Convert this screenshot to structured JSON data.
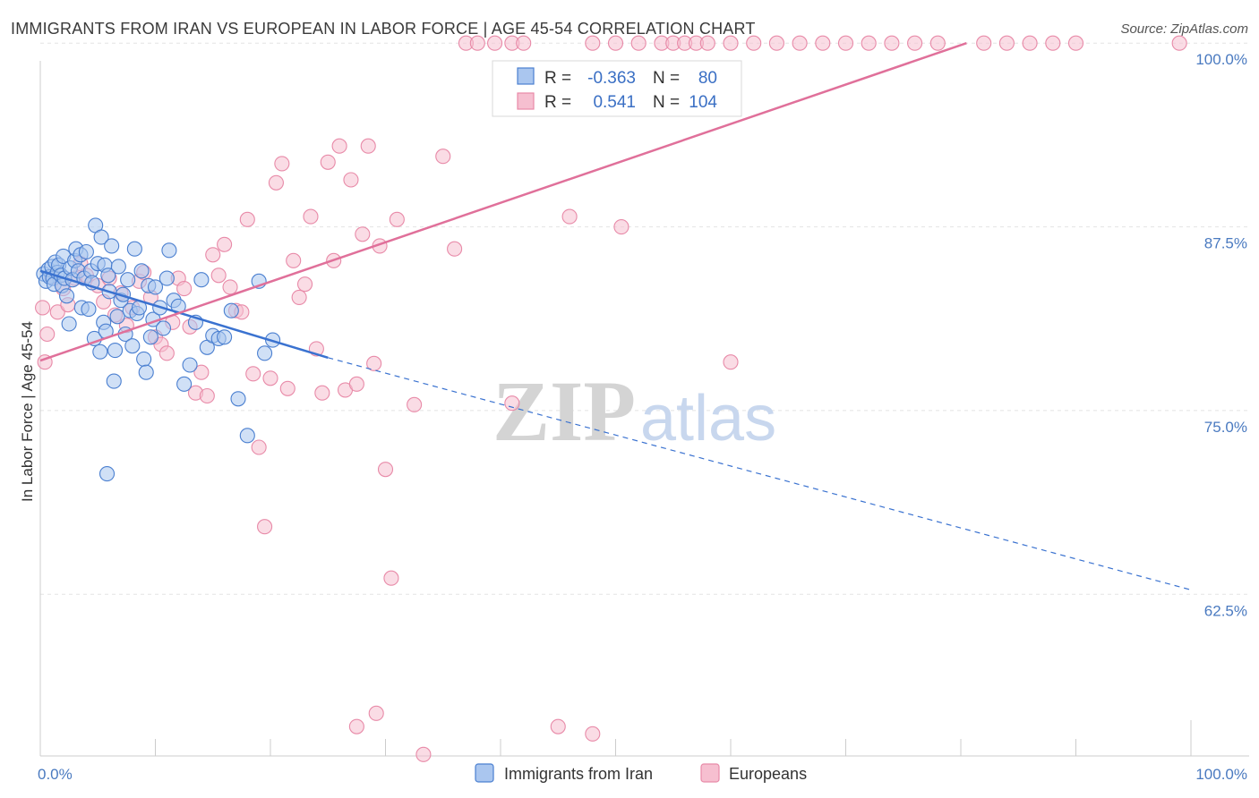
{
  "title": "IMMIGRANTS FROM IRAN VS EUROPEAN IN LABOR FORCE | AGE 45-54 CORRELATION CHART",
  "source": "Source: ZipAtlas.com",
  "watermark": {
    "zip": "ZIP",
    "atlas": "atlas"
  },
  "colors": {
    "iran_fill": "#aac6ef",
    "iran_stroke": "#4a7fd0",
    "iran_line": "#3a72d0",
    "euro_fill": "#f6bfd0",
    "euro_stroke": "#e88aa8",
    "euro_line": "#e0709a",
    "grid": "#e4e4e4",
    "axis": "#cccccc"
  },
  "stats": {
    "iran": {
      "r_label": "R =",
      "r_value": "-0.363",
      "n_label": "N =",
      "n_value": "80"
    },
    "euro": {
      "r_label": "R =",
      "r_value": "0.541",
      "n_label": "N =",
      "n_value": "104"
    }
  },
  "chart_data": {
    "type": "scatter",
    "title": "IMMIGRANTS FROM IRAN VS EUROPEAN IN LABOR FORCE | AGE 45-54 CORRELATION CHART",
    "xlabel": "",
    "ylabel": "In Labor Force | Age 45-54",
    "xlim": [
      0,
      100
    ],
    "ylim": [
      51.5,
      100.5
    ],
    "x_tick_labels": [
      {
        "value": 0,
        "label": "0.0%"
      },
      {
        "value": 100,
        "label": "100.0%"
      }
    ],
    "y_tick_labels": [
      {
        "value": 100,
        "label": "100.0%"
      },
      {
        "value": 87.5,
        "label": "87.5%"
      },
      {
        "value": 75,
        "label": "75.0%"
      },
      {
        "value": 62.5,
        "label": "62.5%"
      }
    ],
    "x_minor_ticks": [
      10,
      20,
      30,
      40,
      50,
      60,
      70,
      80,
      90
    ],
    "legend": [
      "Immigrants from Iran",
      "Europeans"
    ],
    "series": [
      {
        "name": "Immigrants from Iran",
        "points": [
          [
            0.3,
            84.3
          ],
          [
            0.5,
            83.8
          ],
          [
            0.7,
            84.6
          ],
          [
            0.8,
            84.1
          ],
          [
            1.0,
            84.8
          ],
          [
            1.1,
            84.0
          ],
          [
            1.2,
            83.6
          ],
          [
            1.3,
            85.1
          ],
          [
            1.5,
            84.4
          ],
          [
            1.6,
            84.9
          ],
          [
            1.8,
            84.2
          ],
          [
            1.9,
            83.5
          ],
          [
            2.0,
            85.5
          ],
          [
            2.1,
            84.0
          ],
          [
            2.3,
            82.8
          ],
          [
            2.5,
            80.9
          ],
          [
            2.6,
            84.7
          ],
          [
            2.8,
            83.9
          ],
          [
            3.0,
            85.2
          ],
          [
            3.1,
            86.0
          ],
          [
            3.3,
            84.5
          ],
          [
            3.5,
            85.6
          ],
          [
            3.6,
            82.0
          ],
          [
            3.8,
            84.0
          ],
          [
            4.0,
            85.8
          ],
          [
            4.2,
            81.9
          ],
          [
            4.4,
            84.5
          ],
          [
            4.5,
            83.7
          ],
          [
            4.7,
            79.9
          ],
          [
            4.8,
            87.6
          ],
          [
            5.0,
            85.0
          ],
          [
            5.2,
            79.0
          ],
          [
            5.3,
            86.8
          ],
          [
            5.5,
            81.0
          ],
          [
            5.6,
            84.9
          ],
          [
            5.7,
            80.4
          ],
          [
            5.9,
            84.2
          ],
          [
            6.0,
            83.1
          ],
          [
            6.2,
            86.2
          ],
          [
            6.4,
            77.0
          ],
          [
            6.5,
            79.1
          ],
          [
            6.7,
            81.4
          ],
          [
            6.8,
            84.8
          ],
          [
            7.0,
            82.5
          ],
          [
            7.2,
            82.9
          ],
          [
            7.4,
            80.2
          ],
          [
            7.6,
            83.9
          ],
          [
            7.8,
            81.8
          ],
          [
            8.0,
            79.4
          ],
          [
            8.2,
            86.0
          ],
          [
            8.4,
            81.6
          ],
          [
            8.6,
            82.0
          ],
          [
            8.8,
            84.5
          ],
          [
            9.0,
            78.5
          ],
          [
            9.2,
            77.6
          ],
          [
            9.4,
            83.5
          ],
          [
            9.6,
            80.0
          ],
          [
            9.8,
            81.2
          ],
          [
            10.0,
            83.4
          ],
          [
            10.4,
            82.0
          ],
          [
            10.7,
            80.6
          ],
          [
            11.0,
            84.0
          ],
          [
            11.2,
            85.9
          ],
          [
            11.6,
            82.5
          ],
          [
            12.0,
            82.1
          ],
          [
            12.5,
            76.8
          ],
          [
            13.0,
            78.1
          ],
          [
            13.5,
            81.0
          ],
          [
            14.0,
            83.9
          ],
          [
            14.5,
            79.3
          ],
          [
            15.0,
            80.1
          ],
          [
            15.5,
            79.9
          ],
          [
            16.0,
            80.0
          ],
          [
            16.6,
            81.8
          ],
          [
            5.8,
            70.7
          ],
          [
            17.2,
            75.8
          ],
          [
            18.0,
            73.3
          ],
          [
            19.0,
            83.8
          ],
          [
            19.5,
            78.9
          ],
          [
            20.2,
            79.8
          ]
        ]
      },
      {
        "name": "Europeans",
        "points": [
          [
            0.2,
            82.0
          ],
          [
            0.4,
            78.3
          ],
          [
            0.6,
            80.2
          ],
          [
            1.0,
            84.1
          ],
          [
            1.5,
            81.7
          ],
          [
            2.0,
            83.3
          ],
          [
            2.4,
            82.2
          ],
          [
            3.0,
            84.0
          ],
          [
            3.5,
            85.0
          ],
          [
            4.0,
            84.2
          ],
          [
            5.0,
            83.5
          ],
          [
            5.5,
            82.4
          ],
          [
            6.0,
            84.0
          ],
          [
            6.5,
            81.5
          ],
          [
            7.0,
            83.0
          ],
          [
            7.5,
            80.8
          ],
          [
            8.0,
            82.0
          ],
          [
            8.6,
            83.8
          ],
          [
            9.0,
            84.4
          ],
          [
            9.6,
            82.7
          ],
          [
            10.0,
            80.0
          ],
          [
            10.5,
            79.5
          ],
          [
            11.0,
            78.9
          ],
          [
            11.5,
            81.0
          ],
          [
            12.0,
            84.0
          ],
          [
            12.5,
            83.3
          ],
          [
            13.0,
            80.7
          ],
          [
            13.5,
            76.2
          ],
          [
            14.0,
            77.6
          ],
          [
            14.5,
            76.0
          ],
          [
            15.0,
            85.6
          ],
          [
            15.5,
            84.2
          ],
          [
            16.0,
            86.3
          ],
          [
            16.5,
            83.4
          ],
          [
            17.0,
            81.8
          ],
          [
            17.5,
            81.7
          ],
          [
            18.0,
            88.0
          ],
          [
            18.5,
            77.5
          ],
          [
            19.0,
            72.5
          ],
          [
            19.5,
            67.1
          ],
          [
            20.0,
            77.2
          ],
          [
            20.5,
            90.5
          ],
          [
            21.0,
            91.8
          ],
          [
            21.5,
            76.5
          ],
          [
            22.0,
            85.2
          ],
          [
            22.5,
            82.7
          ],
          [
            23.0,
            83.6
          ],
          [
            23.5,
            88.2
          ],
          [
            24.0,
            79.2
          ],
          [
            24.5,
            76.2
          ],
          [
            25.0,
            91.9
          ],
          [
            25.5,
            85.2
          ],
          [
            26.0,
            93.0
          ],
          [
            26.5,
            76.4
          ],
          [
            27.0,
            90.7
          ],
          [
            27.5,
            76.8
          ],
          [
            28.0,
            87.0
          ],
          [
            28.5,
            93.0
          ],
          [
            29.0,
            78.2
          ],
          [
            29.5,
            86.2
          ],
          [
            30.0,
            71.0
          ],
          [
            30.5,
            63.6
          ],
          [
            31.0,
            88.0
          ],
          [
            32.5,
            75.4
          ],
          [
            33.3,
            51.6
          ],
          [
            35.0,
            92.3
          ],
          [
            36.0,
            86.0
          ],
          [
            37.0,
            100.0
          ],
          [
            38.0,
            100.0
          ],
          [
            39.5,
            100.0
          ],
          [
            41.0,
            100.0
          ],
          [
            42.0,
            100.0
          ],
          [
            45.0,
            53.5
          ],
          [
            46.0,
            88.2
          ],
          [
            48.0,
            100.0
          ],
          [
            50.0,
            100.0
          ],
          [
            52.0,
            100.0
          ],
          [
            54.0,
            100.0
          ],
          [
            55.0,
            100.0
          ],
          [
            56.0,
            100.0
          ],
          [
            57.0,
            100.0
          ],
          [
            58.0,
            100.0
          ],
          [
            60.0,
            100.0
          ],
          [
            62.0,
            100.0
          ],
          [
            64.0,
            100.0
          ],
          [
            66.0,
            100.0
          ],
          [
            68.0,
            100.0
          ],
          [
            70.0,
            100.0
          ],
          [
            72.0,
            100.0
          ],
          [
            74.0,
            100.0
          ],
          [
            76.0,
            100.0
          ],
          [
            78.0,
            100.0
          ],
          [
            82.0,
            100.0
          ],
          [
            84.0,
            100.0
          ],
          [
            86.0,
            100.0
          ],
          [
            88.0,
            100.0
          ],
          [
            90.0,
            100.0
          ],
          [
            29.2,
            54.4
          ],
          [
            27.5,
            53.5
          ],
          [
            48.0,
            53.0
          ],
          [
            60.0,
            78.3
          ],
          [
            50.5,
            87.5
          ],
          [
            41.0,
            75.5
          ],
          [
            99.0,
            100.0
          ]
        ]
      }
    ],
    "trend_lines": [
      {
        "series": "Immigrants from Iran",
        "solid": [
          [
            0,
            84.5
          ],
          [
            25,
            78.6
          ]
        ],
        "dashed": [
          [
            25,
            78.6
          ],
          [
            100,
            62.8
          ]
        ]
      },
      {
        "series": "Europeans",
        "solid": [
          [
            0,
            78.4
          ],
          [
            80.5,
            100.0
          ]
        ]
      }
    ]
  }
}
